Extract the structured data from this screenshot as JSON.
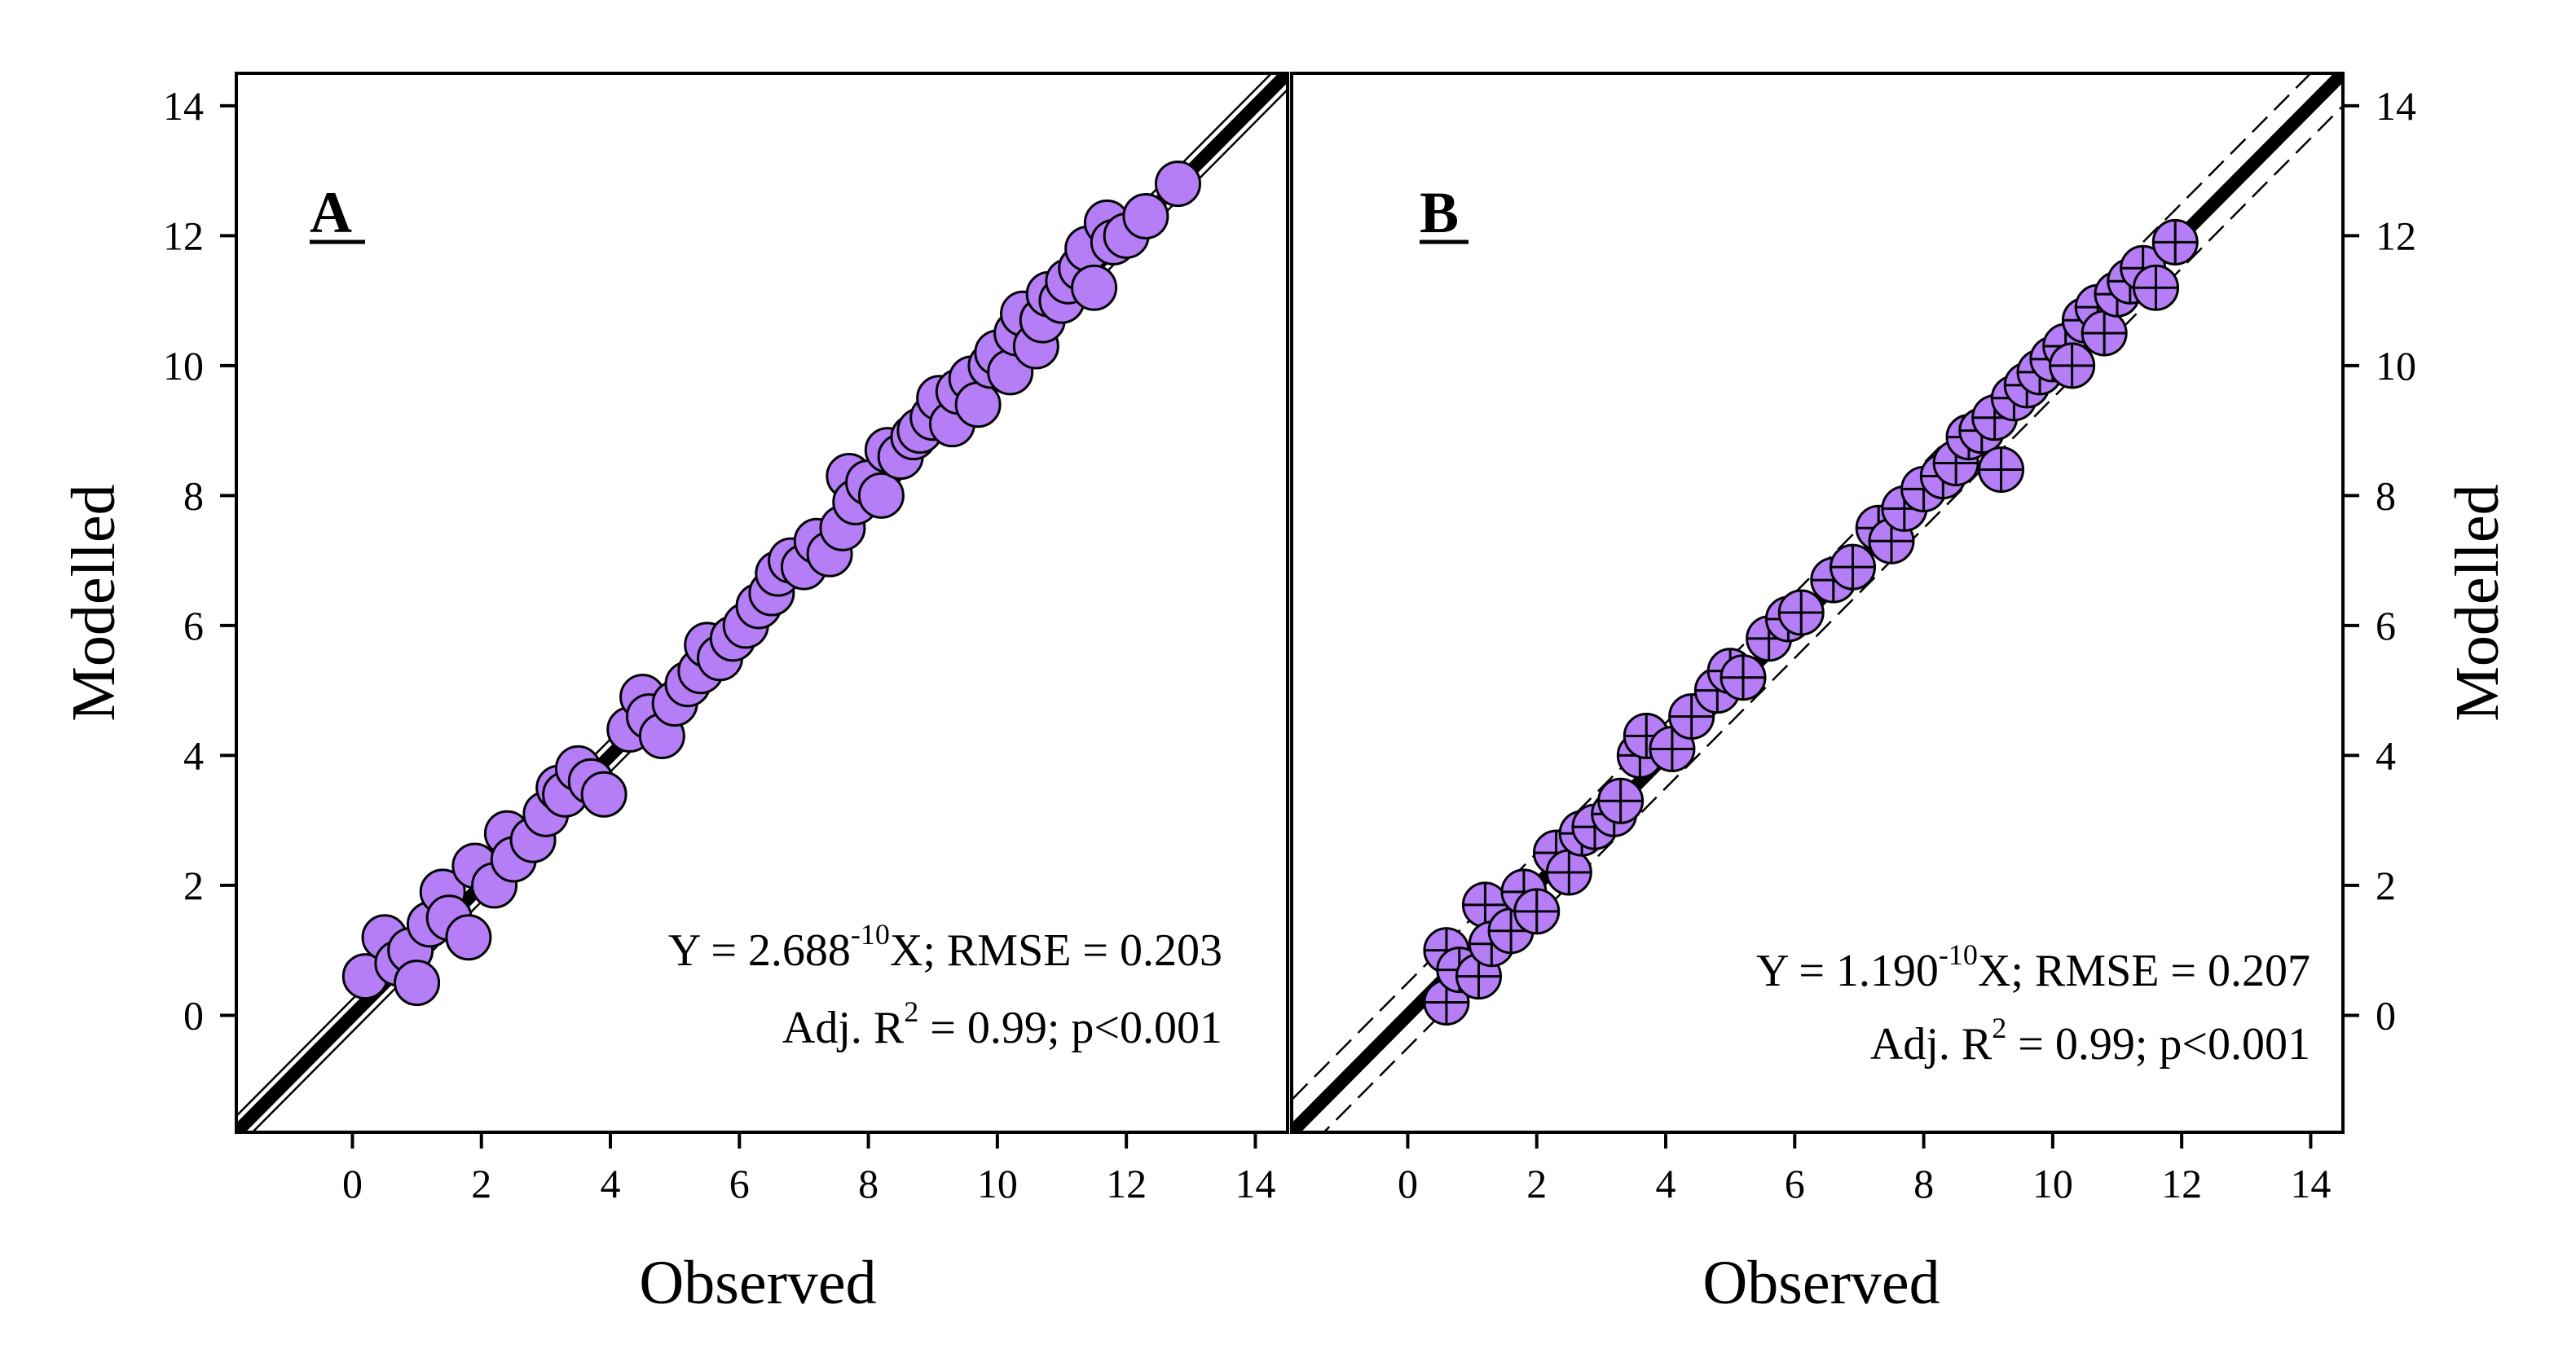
{
  "colors": {
    "marker_fill": "#b57ef7",
    "marker_stroke": "#000000",
    "line": "#000000"
  },
  "chart_data": [
    {
      "type": "scatter",
      "panel_label": "A",
      "xlabel": "Observed",
      "ylabel": "Modelled",
      "xlim": [
        -1.8,
        14.5
      ],
      "ylim": [
        -1.8,
        14.5
      ],
      "x_ticks": [
        0,
        2,
        4,
        6,
        8,
        10,
        12,
        14
      ],
      "y_ticks": [
        0,
        2,
        4,
        6,
        8,
        10,
        12,
        14
      ],
      "tick_labels": [
        "0",
        "2",
        "4",
        "6",
        "8",
        "10",
        "12",
        "14"
      ],
      "marker": "circle",
      "reference_lines": [
        {
          "kind": "1:1 line",
          "style": "thick solid",
          "slope": 1,
          "intercept": 0
        },
        {
          "kind": "confidence band",
          "style": "thin solid",
          "slope": 1,
          "intercept": 0.25
        },
        {
          "kind": "confidence band",
          "style": "thin solid",
          "slope": 1,
          "intercept": -0.25
        }
      ],
      "stats": {
        "line1_pre": "Y = 2.688",
        "line1_sup": "-10",
        "line1_post": "X; RMSE = 0.203",
        "line2_pre": "Adj. R",
        "line2_sup": "2",
        "line2_post": " = 0.99; p<0.001"
      },
      "points": {
        "x": [
          0.2,
          0.5,
          0.7,
          0.9,
          1.0,
          1.2,
          1.4,
          1.5,
          1.8,
          1.9,
          2.2,
          2.4,
          2.5,
          2.8,
          3.0,
          3.2,
          3.3,
          3.5,
          3.7,
          3.9,
          4.3,
          4.5,
          4.6,
          4.8,
          5.0,
          5.2,
          5.4,
          5.5,
          5.7,
          5.9,
          6.1,
          6.3,
          6.5,
          6.6,
          6.8,
          7.0,
          7.2,
          7.4,
          7.6,
          7.7,
          7.8,
          8.0,
          8.2,
          8.3,
          8.5,
          8.7,
          8.8,
          9.0,
          9.1,
          9.3,
          9.4,
          9.6,
          9.7,
          9.9,
          10.0,
          10.2,
          10.3,
          10.4,
          10.6,
          10.7,
          10.8,
          11.0,
          11.1,
          11.3,
          11.4,
          11.5,
          11.7,
          11.8,
          12.0,
          12.3,
          12.8
        ],
        "y": [
          0.6,
          1.2,
          0.8,
          1.0,
          0.5,
          1.4,
          1.9,
          1.5,
          1.2,
          2.3,
          2.0,
          2.8,
          2.4,
          2.7,
          3.1,
          3.5,
          3.4,
          3.8,
          3.6,
          3.4,
          4.4,
          4.9,
          4.6,
          4.3,
          4.8,
          5.1,
          5.3,
          5.7,
          5.5,
          5.8,
          6.0,
          6.3,
          6.5,
          6.8,
          7.0,
          6.9,
          7.3,
          7.1,
          7.5,
          8.3,
          7.9,
          8.2,
          8.0,
          8.7,
          8.6,
          8.9,
          9.0,
          9.2,
          9.5,
          9.1,
          9.6,
          9.8,
          9.4,
          10.0,
          10.2,
          9.9,
          10.5,
          10.8,
          10.3,
          10.7,
          11.1,
          11.0,
          11.3,
          11.5,
          11.8,
          11.2,
          12.2,
          11.9,
          12.0,
          12.3,
          12.8
        ]
      }
    },
    {
      "type": "scatter",
      "panel_label": "B",
      "xlabel": "Observed",
      "ylabel": "Modelled",
      "xlim": [
        -1.8,
        14.5
      ],
      "ylim": [
        -1.8,
        14.5
      ],
      "x_ticks": [
        0,
        2,
        4,
        6,
        8,
        10,
        12,
        14
      ],
      "y_ticks": [
        0,
        2,
        4,
        6,
        8,
        10,
        12,
        14
      ],
      "tick_labels": [
        "0",
        "2",
        "4",
        "6",
        "8",
        "10",
        "12",
        "14"
      ],
      "marker": "circle with cross",
      "reference_lines": [
        {
          "kind": "1:1 line",
          "style": "thick solid",
          "slope": 1,
          "intercept": 0
        },
        {
          "kind": "confidence band",
          "style": "thin dashed",
          "slope": 1,
          "intercept": 0.5
        },
        {
          "kind": "confidence band",
          "style": "thin dashed",
          "slope": 1,
          "intercept": -0.5
        }
      ],
      "stats": {
        "line1_pre": "Y = 1.190",
        "line1_sup": "-10",
        "line1_post": "X; RMSE = 0.207",
        "line2_pre": "Adj. R",
        "line2_sup": "2",
        "line2_post": " = 0.99; p<0.001"
      },
      "points": {
        "x": [
          0.6,
          0.6,
          0.8,
          1.1,
          1.2,
          1.3,
          1.6,
          1.8,
          2.0,
          2.3,
          2.5,
          2.7,
          2.9,
          3.2,
          3.3,
          3.6,
          3.7,
          4.1,
          4.4,
          4.8,
          5.0,
          5.2,
          5.6,
          5.9,
          6.1,
          6.6,
          6.9,
          7.3,
          7.5,
          7.7,
          8.0,
          8.3,
          8.5,
          8.7,
          8.9,
          9.1,
          9.2,
          9.4,
          9.6,
          9.8,
          10.0,
          10.2,
          10.3,
          10.5,
          10.7,
          10.8,
          11.0,
          11.2,
          11.4,
          11.6,
          11.9
        ],
        "y": [
          1.0,
          0.2,
          0.7,
          0.6,
          1.7,
          1.1,
          1.3,
          1.9,
          1.6,
          2.5,
          2.2,
          2.8,
          2.9,
          3.1,
          3.3,
          4.0,
          4.3,
          4.1,
          4.6,
          5.0,
          5.3,
          5.2,
          5.8,
          6.1,
          6.2,
          6.7,
          6.9,
          7.5,
          7.3,
          7.8,
          8.1,
          8.3,
          8.5,
          8.9,
          9.0,
          9.2,
          8.4,
          9.5,
          9.7,
          9.9,
          10.1,
          10.3,
          10.0,
          10.7,
          10.9,
          10.5,
          11.1,
          11.3,
          11.5,
          11.2,
          11.9
        ]
      }
    }
  ]
}
